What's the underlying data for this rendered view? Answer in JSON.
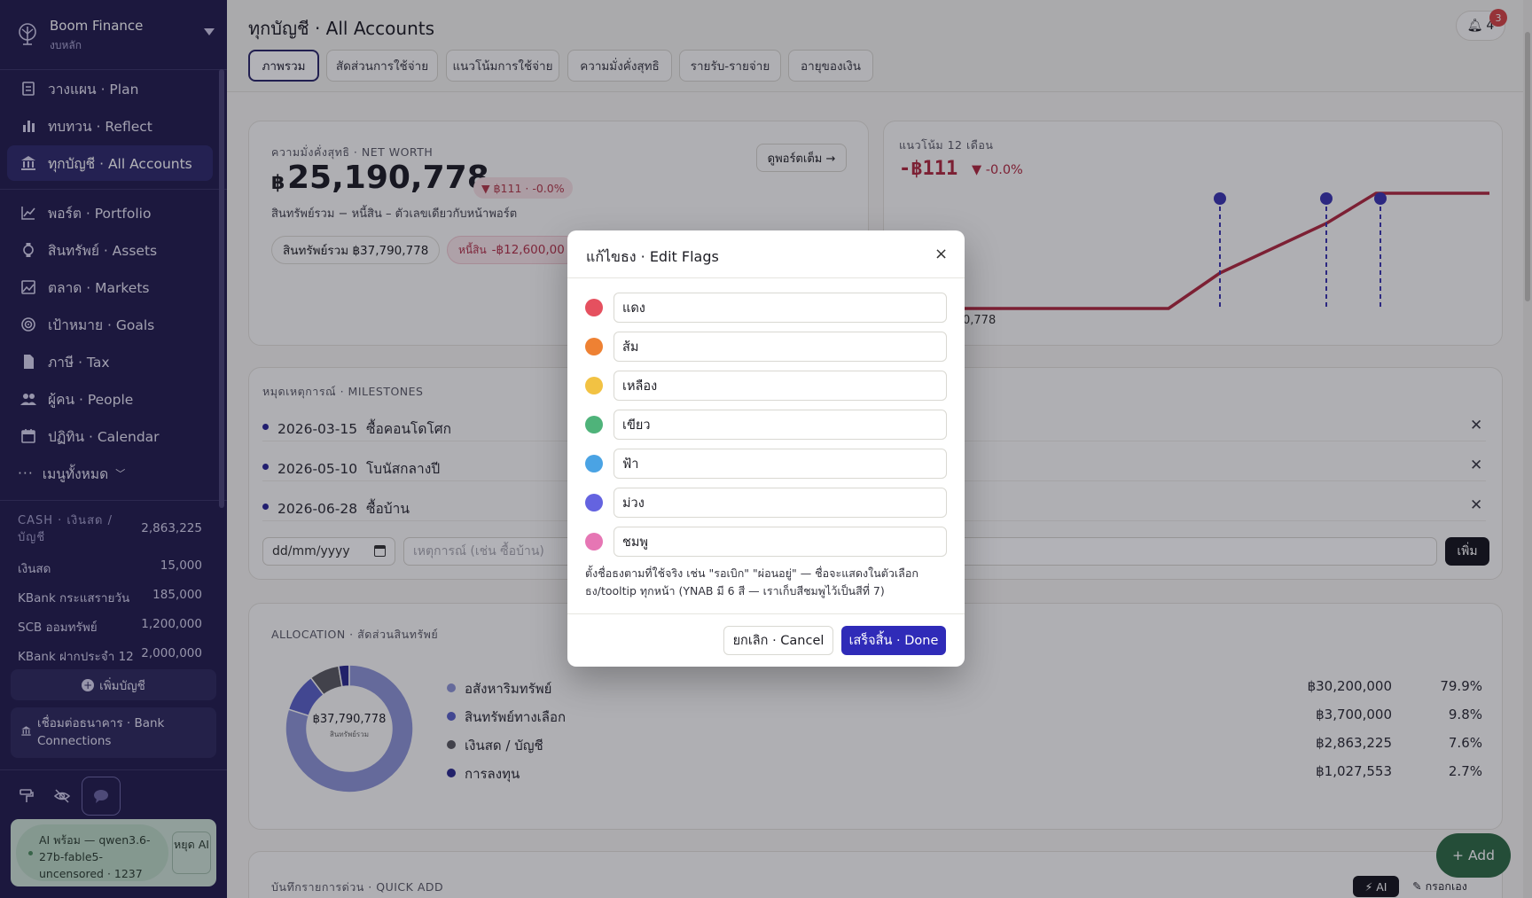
{
  "app": {
    "name": "Boom Finance",
    "book": "งบหลัก"
  },
  "sidebar": {
    "nav_primary": [
      {
        "label": "วางแผน · Plan",
        "icon": "plan-icon"
      },
      {
        "label": "ทบทวน · Reflect",
        "icon": "bar-chart-icon"
      },
      {
        "label": "ทุกบัญชี · All Accounts",
        "icon": "bank-icon",
        "active": true
      }
    ],
    "nav_secondary": [
      {
        "label": "พอร์ต · Portfolio",
        "icon": "line-chart-icon"
      },
      {
        "label": "สินทรัพย์ · Assets",
        "icon": "watch-icon"
      },
      {
        "label": "ตลาด · Markets",
        "icon": "image-icon"
      },
      {
        "label": "เป้าหมาย · Goals",
        "icon": "target-icon"
      },
      {
        "label": "ภาษี · Tax",
        "icon": "document-icon"
      },
      {
        "label": "ผู้คน · People",
        "icon": "people-icon"
      },
      {
        "label": "ปฏิทิน · Calendar",
        "icon": "calendar-icon"
      }
    ],
    "all_menu": "เมนูทั้งหมด",
    "cash_group": {
      "label": "CASH · เงินสด / บัญชี",
      "total": "2,863,225"
    },
    "accounts": [
      {
        "name": "เงินสด",
        "amount": "15,000"
      },
      {
        "name": "KBank กระแสรายวัน",
        "amount": "185,000"
      },
      {
        "name": "SCB ออมทรัพย์",
        "amount": "1,200,000"
      },
      {
        "name": "KBank ฝากประจำ 12 เ...",
        "amount": "2,000,000"
      }
    ],
    "add_account": "เพิ่มบัญชี",
    "bank_connections": "เชื่อมต่อธนาคาร · Bank Connections",
    "ai_status": "AI พร้อม — qwen3.6-27b-fable5-uncensored · 1237",
    "ai_stop": "หยุด AI"
  },
  "header": {
    "title": "ทุกบัญชี · All Accounts",
    "notifications": "4",
    "notif_badge": "3",
    "tabs": [
      "ภาพรวม",
      "สัดส่วนการใช้จ่าย",
      "แนวโน้มการใช้จ่าย",
      "ความมั่งคั่งสุทธิ",
      "รายรับ-รายจ่าย",
      "อายุของเงิน"
    ]
  },
  "net_worth": {
    "label": "ความมั่งคั่งสุทธิ · NET WORTH",
    "currency": "฿",
    "value": "25,190,778",
    "delta": "▼ ฿111 · -0.0%",
    "subtitle": "สินทรัพย์รวม − หนี้สิน – ตัวเลขเดียวกับหน้าพอร์ต",
    "view_portfolio": "ดูพอร์ตเต็ม →",
    "assets_chip": "สินทรัพย์รวม ฿37,790,778",
    "debt_label": "หนี้สิน",
    "debt_value": "-฿12,600,00"
  },
  "trend": {
    "label": "แนวโน้ม 12 เดือน",
    "value": "-฿111",
    "delta": "▼ -0.0%",
    "axis_label": "0,778"
  },
  "milestones": {
    "label": "หมุดเหตุการณ์ · MILESTONES",
    "items": [
      {
        "date": "2026-03-15",
        "title": "ซื้อคอนโดโศก"
      },
      {
        "date": "2026-05-10",
        "title": "โบนัสกลางปี"
      },
      {
        "date": "2026-06-28",
        "title": "ซื้อบ้าน"
      }
    ],
    "date_placeholder": "dd/mm/yyyy",
    "event_placeholder": "เหตุการณ์ (เช่น ซื้อบ้าน)",
    "add": "เพิ่ม"
  },
  "allocation": {
    "label": "ALLOCATION · สัดส่วนสินทรัพย์",
    "center_value": "฿37,790,778",
    "center_label": "สินทรัพย์รวม",
    "items": [
      {
        "name": "อสังหาริมทรัพย์",
        "value": "฿30,200,000",
        "percent": "79.9%",
        "share": 79.9,
        "color": "#8e95d6"
      },
      {
        "name": "สินทรัพย์ทางเลือก",
        "value": "฿3,700,000",
        "percent": "9.8%",
        "share": 9.8,
        "color": "#5a62c8"
      },
      {
        "name": "เงินสด / บัญชี",
        "value": "฿2,863,225",
        "percent": "7.6%",
        "share": 7.6,
        "color": "#5b5a60"
      },
      {
        "name": "การลงทุน",
        "value": "฿1,027,553",
        "percent": "2.7%",
        "share": 2.7,
        "color": "#2b2a8e"
      }
    ]
  },
  "quick_add": {
    "label": "บันทึกรายการด่วน · QUICK ADD",
    "ai": "⚡ AI",
    "manual": "✎ กรอกเอง"
  },
  "fab": "+ Add",
  "modal": {
    "title": "แก้ไขธง · Edit Flags",
    "close": "×",
    "flags": [
      {
        "name": "แดง",
        "color": "#e5505f"
      },
      {
        "name": "ส้ม",
        "color": "#ee8133"
      },
      {
        "name": "เหลือง",
        "color": "#f2c243"
      },
      {
        "name": "เขียว",
        "color": "#4fb37a"
      },
      {
        "name": "ฟ้า",
        "color": "#4aa3e4"
      },
      {
        "name": "ม่วง",
        "color": "#6463e0"
      },
      {
        "name": "ชมพู",
        "color": "#e676b4"
      }
    ],
    "help": "ตั้งชื่อธงตามที่ใช้จริง เช่น \"รอเบิก\" \"ผ่อนอยู่\" — ชื่อจะแสดงในตัวเลือกธง/tooltip ทุกหน้า (YNAB มี 6 สี — เราเก็บสีชมพูไว้เป็นสีที่ 7)",
    "cancel": "ยกเลิก · Cancel",
    "done": "เสร็จสิ้น · Done"
  }
}
